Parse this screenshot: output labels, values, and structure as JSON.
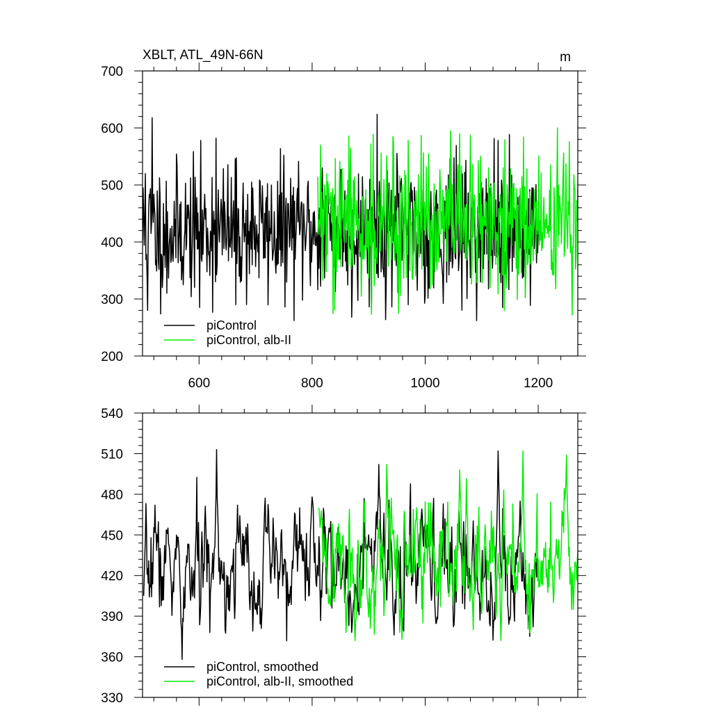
{
  "colors": {
    "piControl": "#000000",
    "alb_II": "#00ee00",
    "axis": "#000000",
    "background": "#ffffff"
  },
  "chart_data": [
    {
      "type": "line",
      "title": "XBLT, ATL_49N-66N",
      "unit_label": "m",
      "xlim": [
        500,
        1270
      ],
      "ylim": [
        200,
        700
      ],
      "x_ticks": [
        600,
        800,
        1000,
        1200
      ],
      "x_tick_labels": [
        "600",
        "800",
        "1000",
        "1200"
      ],
      "y_ticks": [
        200,
        300,
        400,
        500,
        600,
        700
      ],
      "y_tick_labels": [
        "200",
        "300",
        "400",
        "500",
        "600",
        "700"
      ],
      "show_x_tick_labels": true,
      "grid": false,
      "legend": {
        "placement": "bottom-left",
        "entries": [
          "piControl",
          "piControl, alb-II"
        ]
      },
      "series": [
        {
          "name": "piControl",
          "color_key": "piControl",
          "x_start": 500,
          "x_end": 1200,
          "step": 1,
          "mean": 420,
          "std": 58,
          "smooth_alpha": 0.0,
          "seed": 11,
          "anchors": [
            [
              505,
              520
            ],
            [
              509,
              280
            ],
            [
              517,
              618
            ],
            [
              543,
              310
            ],
            [
              601,
              285
            ],
            [
              630,
              582
            ],
            [
              665,
              290
            ],
            [
              818,
              530
            ],
            [
              870,
              268
            ],
            [
              915,
              624
            ],
            [
              970,
              290
            ],
            [
              1129,
              578
            ],
            [
              1137,
              285
            ],
            [
              1198,
              420
            ]
          ],
          "ylim_clip": [
            262,
            630
          ]
        },
        {
          "name": "piControl, alb-II",
          "color_key": "alb_II",
          "x_start": 810,
          "x_end": 1270,
          "step": 1,
          "mean": 430,
          "std": 60,
          "smooth_alpha": 0.0,
          "seed": 29,
          "anchors": [
            [
              815,
              570
            ],
            [
              840,
              280
            ],
            [
              865,
              586
            ],
            [
              943,
              585
            ],
            [
              1045,
              595
            ],
            [
              1061,
              590
            ],
            [
              1140,
              280
            ],
            [
              1174,
              584
            ],
            [
              1255,
              576
            ],
            [
              1270,
              505
            ]
          ],
          "ylim_clip": [
            272,
            600
          ]
        }
      ]
    },
    {
      "type": "line",
      "title": "",
      "unit_label": "",
      "xlim": [
        500,
        1270
      ],
      "ylim": [
        330,
        540
      ],
      "x_ticks": [
        600,
        800,
        1000,
        1200
      ],
      "x_tick_labels": [
        "600",
        "800",
        "1000",
        "1200"
      ],
      "y_ticks": [
        330,
        360,
        390,
        420,
        450,
        480,
        510,
        540
      ],
      "y_tick_labels": [
        "330",
        "360",
        "390",
        "420",
        "450",
        "480",
        "510",
        "540"
      ],
      "show_x_tick_labels": false,
      "grid": false,
      "legend": {
        "placement": "bottom-left",
        "entries": [
          "piControl, smoothed",
          "piControl, alb-II, smoothed"
        ]
      },
      "series": [
        {
          "name": "piControl, smoothed",
          "color_key": "piControl",
          "x_start": 502,
          "x_end": 1198,
          "step": 1,
          "mean": 424,
          "std": 20,
          "smooth_alpha": 0.55,
          "seed": 7,
          "anchors": [
            [
              502,
              405
            ],
            [
              522,
              472
            ],
            [
              545,
              455
            ],
            [
              570,
              358
            ],
            [
              631,
              513
            ],
            [
              640,
              430
            ],
            [
              668,
              472
            ],
            [
              700,
              395
            ],
            [
              760,
              400
            ],
            [
              778,
              470
            ],
            [
              800,
              478
            ],
            [
              830,
              455
            ],
            [
              870,
              378
            ],
            [
              900,
              450
            ],
            [
              918,
              502
            ],
            [
              945,
              376
            ],
            [
              1000,
              460
            ],
            [
              1020,
              385
            ],
            [
              1060,
              468
            ],
            [
              1080,
              420
            ],
            [
              1129,
              512
            ],
            [
              1148,
              384
            ],
            [
              1168,
              475
            ],
            [
              1185,
              375
            ],
            [
              1198,
              433
            ]
          ],
          "ylim_clip": [
            355,
            515
          ]
        },
        {
          "name": "piControl, alb-II, smoothed",
          "color_key": "alb_II",
          "x_start": 812,
          "x_end": 1270,
          "step": 1,
          "mean": 432,
          "std": 22,
          "smooth_alpha": 0.55,
          "seed": 41,
          "anchors": [
            [
              812,
              470
            ],
            [
              830,
              400
            ],
            [
              860,
              378
            ],
            [
              876,
              372
            ],
            [
              893,
              475
            ],
            [
              917,
              455
            ],
            [
              932,
              502
            ],
            [
              955,
              378
            ],
            [
              985,
              470
            ],
            [
              1020,
              405
            ],
            [
              1061,
              498
            ],
            [
              1085,
              380
            ],
            [
              1100,
              392
            ],
            [
              1134,
              372
            ],
            [
              1150,
              440
            ],
            [
              1173,
              512
            ],
            [
              1192,
              405
            ],
            [
              1210,
              440
            ],
            [
              1227,
              400
            ],
            [
              1250,
              509
            ],
            [
              1262,
              395
            ],
            [
              1270,
              438
            ]
          ],
          "ylim_clip": [
            368,
            515
          ]
        }
      ]
    }
  ]
}
